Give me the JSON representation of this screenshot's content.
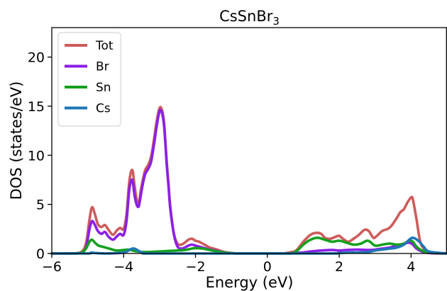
{
  "chart_data": {
    "type": "line",
    "title": "CsSnBr",
    "title_subscript": "3",
    "xlabel": "Energy (eV)",
    "ylabel": "DOS (states/eV)",
    "xlim": [
      -6,
      5
    ],
    "ylim": [
      0,
      23
    ],
    "xticks": [
      -6,
      -4,
      -2,
      0,
      2,
      4
    ],
    "yticks": [
      0,
      5,
      10,
      15,
      20
    ],
    "xtick_labels": [
      "−6",
      "−4",
      "−2",
      "0",
      "2",
      "4"
    ],
    "ytick_labels": [
      "0",
      "5",
      "10",
      "15",
      "20"
    ],
    "grid": false,
    "legend_position": "upper-left",
    "series": [
      {
        "name": "Tot",
        "color": "#cd5c5c",
        "x": [
          -6.0,
          -5.5,
          -5.2,
          -5.05,
          -4.95,
          -4.88,
          -4.8,
          -4.72,
          -4.62,
          -4.52,
          -4.42,
          -4.3,
          -4.2,
          -4.1,
          -4.0,
          -3.92,
          -3.84,
          -3.76,
          -3.7,
          -3.64,
          -3.58,
          -3.52,
          -3.46,
          -3.4,
          -3.32,
          -3.24,
          -3.16,
          -3.08,
          -3.0,
          -2.94,
          -2.88,
          -2.84,
          -2.8,
          -2.75,
          -2.7,
          -2.6,
          -2.5,
          -2.4,
          -2.3,
          -2.2,
          -2.1,
          -2.0,
          -1.9,
          -1.8,
          -1.7,
          -1.6,
          -1.4,
          -1.2,
          -1.0,
          -0.8,
          -0.6,
          -0.4,
          0.0,
          0.4,
          0.6,
          0.8,
          1.0,
          1.2,
          1.35,
          1.5,
          1.6,
          1.75,
          1.9,
          2.0,
          2.1,
          2.25,
          2.4,
          2.55,
          2.7,
          2.82,
          2.95,
          3.05,
          3.2,
          3.35,
          3.45,
          3.6,
          3.7,
          3.8,
          3.9,
          4.0,
          4.05,
          4.15,
          4.25,
          4.35,
          4.5,
          4.7,
          5.0
        ],
        "values": [
          0,
          0,
          0.1,
          1.0,
          3.5,
          4.7,
          4.0,
          3.0,
          2.7,
          2.9,
          2.4,
          1.9,
          2.3,
          2.6,
          2.5,
          4.0,
          7.4,
          8.5,
          7.0,
          5.5,
          5.1,
          6.5,
          7.6,
          8.5,
          9.0,
          9.8,
          11.5,
          13.5,
          14.8,
          14.7,
          13.5,
          11.5,
          9.3,
          7.0,
          4.7,
          2.0,
          1.0,
          0.9,
          1.1,
          1.4,
          1.5,
          1.3,
          1.2,
          1.0,
          0.8,
          0.6,
          0.4,
          0.15,
          0.05,
          0,
          0,
          0,
          0,
          0,
          0.1,
          0.3,
          1.2,
          1.9,
          2.1,
          2.0,
          1.6,
          1.5,
          1.7,
          1.8,
          1.5,
          1.2,
          1.5,
          1.9,
          2.4,
          2.3,
          1.6,
          1.8,
          2.3,
          2.5,
          2.8,
          3.6,
          4.2,
          4.5,
          5.2,
          5.7,
          5.5,
          3.5,
          1.3,
          0.5,
          0.1,
          0,
          0
        ]
      },
      {
        "name": "Br",
        "color": "#8b1fe6",
        "x": [
          -6.0,
          -5.5,
          -5.2,
          -5.05,
          -4.95,
          -4.88,
          -4.8,
          -4.72,
          -4.62,
          -4.52,
          -4.42,
          -4.3,
          -4.2,
          -4.1,
          -4.0,
          -3.92,
          -3.84,
          -3.76,
          -3.7,
          -3.64,
          -3.58,
          -3.52,
          -3.46,
          -3.4,
          -3.32,
          -3.24,
          -3.16,
          -3.08,
          -3.0,
          -2.94,
          -2.88,
          -2.84,
          -2.8,
          -2.75,
          -2.7,
          -2.6,
          -2.5,
          -2.4,
          -2.3,
          -2.2,
          -2.1,
          -2.0,
          -1.9,
          -1.8,
          -1.6,
          -1.4,
          -1.2,
          -1.0,
          -0.8,
          0.0,
          0.6,
          0.8,
          1.0,
          1.2,
          1.5,
          1.8,
          2.0,
          2.2,
          2.5,
          2.8,
          3.0,
          3.2,
          3.4,
          3.6,
          3.8,
          3.95,
          4.05,
          4.15,
          4.3,
          4.5,
          5.0
        ],
        "values": [
          0,
          0,
          0.05,
          0.6,
          2.5,
          3.3,
          2.9,
          2.3,
          2.0,
          2.2,
          1.7,
          1.4,
          1.7,
          2.0,
          1.9,
          3.3,
          6.6,
          7.5,
          6.0,
          5.0,
          4.8,
          6.0,
          7.2,
          8.1,
          8.6,
          9.3,
          11.0,
          13.0,
          14.5,
          14.4,
          13.2,
          11.3,
          9.0,
          6.8,
          4.5,
          1.9,
          0.7,
          0.5,
          0.6,
          0.8,
          0.9,
          0.8,
          0.7,
          0.6,
          0.4,
          0.25,
          0.1,
          0.03,
          0,
          0,
          0,
          0.05,
          0.1,
          0.2,
          0.3,
          0.35,
          0.3,
          0.35,
          0.4,
          0.35,
          0.4,
          0.5,
          0.6,
          0.8,
          1.0,
          1.1,
          0.9,
          0.5,
          0.2,
          0.05,
          0
        ]
      },
      {
        "name": "Sn",
        "color": "#14a01e",
        "x": [
          -6.0,
          -5.5,
          -5.2,
          -5.05,
          -4.95,
          -4.88,
          -4.8,
          -4.7,
          -4.6,
          -4.5,
          -4.4,
          -4.2,
          -4.0,
          -3.9,
          -3.8,
          -3.7,
          -3.6,
          -3.5,
          -3.3,
          -3.0,
          -2.8,
          -2.5,
          -2.3,
          -2.1,
          -2.0,
          -1.8,
          -1.6,
          -1.4,
          -1.2,
          -1.0,
          -0.8,
          0.0,
          0.6,
          0.8,
          1.0,
          1.2,
          1.4,
          1.6,
          1.8,
          2.0,
          2.2,
          2.4,
          2.6,
          2.8,
          3.0,
          3.2,
          3.4,
          3.6,
          3.8,
          3.95,
          4.05,
          4.15,
          4.3,
          4.5,
          5.0
        ],
        "values": [
          0,
          0,
          0.05,
          0.5,
          1.2,
          1.4,
          1.1,
          0.8,
          0.7,
          0.6,
          0.5,
          0.3,
          0.35,
          0.4,
          0.35,
          0.25,
          0.2,
          0.15,
          0.15,
          0.2,
          0.25,
          0.3,
          0.35,
          0.5,
          0.55,
          0.5,
          0.35,
          0.2,
          0.1,
          0.03,
          0,
          0,
          0,
          0.2,
          0.9,
          1.4,
          1.6,
          1.4,
          1.2,
          1.3,
          1.1,
          0.9,
          1.0,
          1.3,
          0.8,
          0.9,
          1.0,
          0.9,
          1.0,
          1.3,
          1.2,
          0.7,
          0.3,
          0.1,
          0
        ]
      },
      {
        "name": "Cs",
        "color": "#1f77b4",
        "x": [
          -6.0,
          -5.0,
          -4.9,
          -4.8,
          -4.5,
          -4.0,
          -3.8,
          -3.7,
          -3.6,
          -3.4,
          -3.0,
          1.5,
          2.0,
          2.3,
          2.5,
          2.8,
          3.0,
          3.2,
          3.4,
          3.6,
          3.8,
          3.95,
          4.05,
          4.2,
          4.35,
          4.5,
          5.0
        ],
        "values": [
          0,
          0,
          0.1,
          0.05,
          0,
          0.1,
          0.45,
          0.5,
          0.3,
          0,
          0,
          0,
          0.05,
          0.1,
          0.1,
          0.15,
          0.3,
          0.4,
          0.5,
          0.6,
          0.9,
          1.4,
          1.6,
          1.3,
          0.7,
          0.2,
          0
        ]
      }
    ]
  }
}
